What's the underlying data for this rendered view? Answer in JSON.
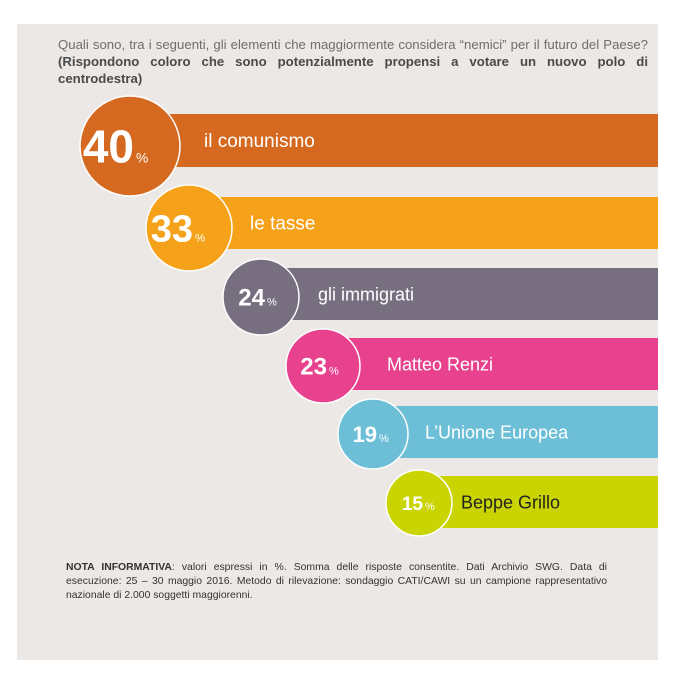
{
  "title": {
    "question": "Quali sono, tra i seguenti, gli elementi che maggiormente considera “nemici” per il futuro del Paese?",
    "subtitle": "(Rispondono coloro che sono potenzialmente propensi a votare un nuovo polo di centrodestra)"
  },
  "note": {
    "label": "NOTA INFORMATIVA",
    "text": ": valori espressi in %. Somma delle risposte consentite. Dati Archivio SWG. Data di esecuzione: 25 – 30 maggio 2016. Metodo di rilevazione: sondaggio CATI/CAWI su un campione rappresentativo nazionale di 2.000 soggetti maggiorenni."
  },
  "chart_data": {
    "type": "bar",
    "orientation": "horizontal",
    "unit": "%",
    "categories": [
      "il comunismo",
      "le tasse",
      "gli immigrati",
      "Matteo Renzi",
      "L’Unione Europea",
      "Beppe Grillo"
    ],
    "values": [
      40,
      33,
      24,
      23,
      19,
      15
    ],
    "colors": [
      "#d5691f",
      "#f5a11a",
      "#776e7f",
      "#e8428e",
      "#6cbfd6",
      "#c9d402"
    ],
    "legend": "none",
    "grid": false
  }
}
